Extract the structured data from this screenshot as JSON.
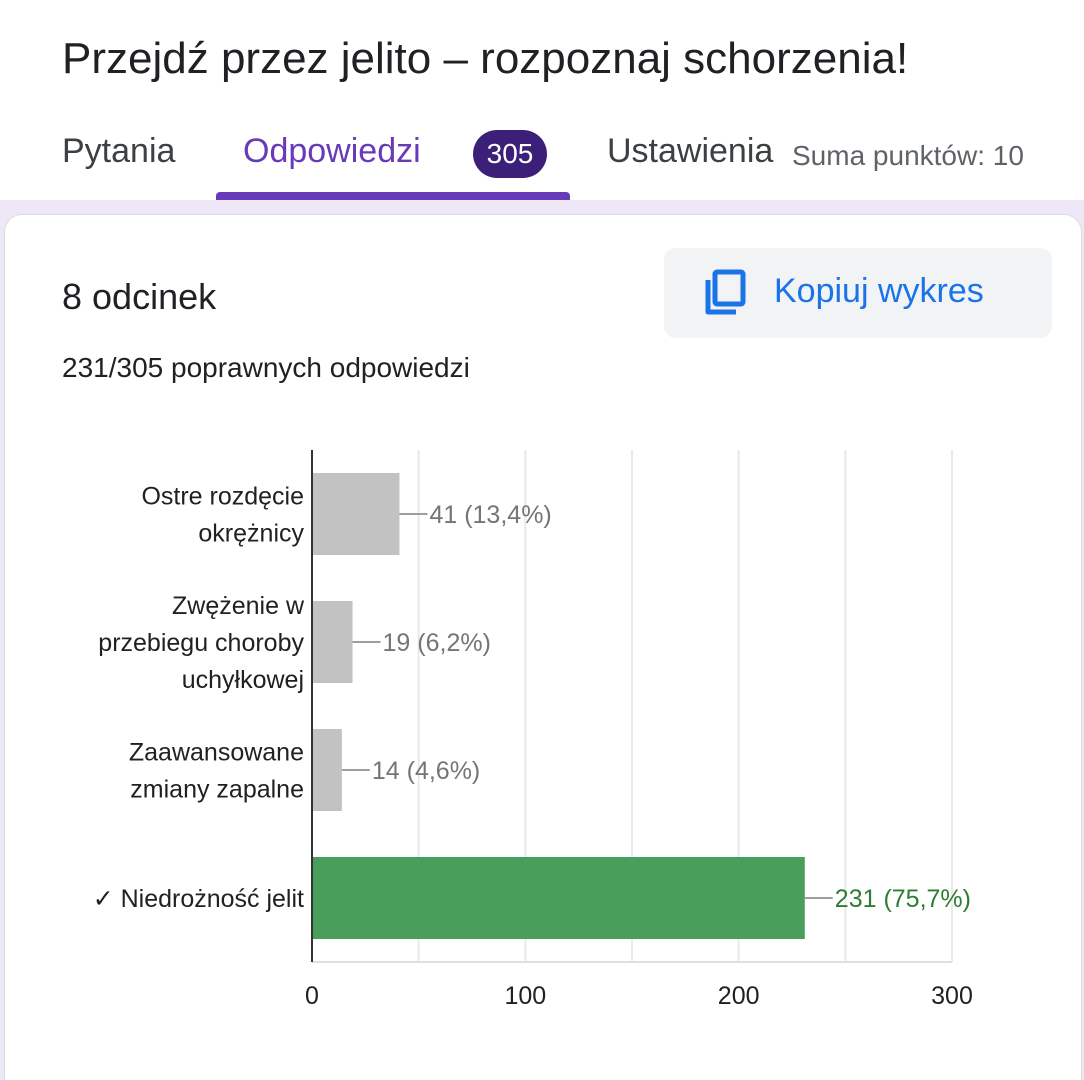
{
  "header": {
    "title": "Przejdź przez jelito – rozpoznaj schorzenia!",
    "tabs": {
      "questions": "Pytania",
      "responses": "Odpowiedzi",
      "responses_count": "305",
      "settings": "Ustawienia"
    },
    "points_total": "Suma punktów: 10"
  },
  "question": {
    "title": "8 odcinek",
    "correct_summary": "231/305 poprawnych odpowiedzi",
    "copy_button": "Kopiuj wykres"
  },
  "colors": {
    "accent": "#673ab7",
    "badge": "#3b1f78",
    "link": "#1a73e8",
    "incorrect_bar": "#c2c2c2",
    "correct_bar": "#4a9e5c",
    "correct_text": "#2e7d32",
    "incorrect_text": "#757575"
  },
  "chart_data": {
    "type": "bar",
    "orientation": "horizontal",
    "categories": [
      [
        "Ostre rozdęcie",
        "okrężnicy"
      ],
      [
        "Zwężenie w",
        "przebiegu choroby",
        "uchyłkowej"
      ],
      [
        "Zaawansowane",
        "zmiany zapalne"
      ],
      [
        "✓ Niedrożność jelit"
      ]
    ],
    "values": [
      41,
      19,
      14,
      231
    ],
    "data_labels": [
      "41 (13,4%)",
      "19 (6,2%)",
      "14 (4,6%)",
      "231 (75,7%)"
    ],
    "correct": [
      false,
      false,
      false,
      true
    ],
    "xlim": [
      0,
      300
    ],
    "xticks": [
      0,
      100,
      200,
      300
    ],
    "grid": true
  }
}
